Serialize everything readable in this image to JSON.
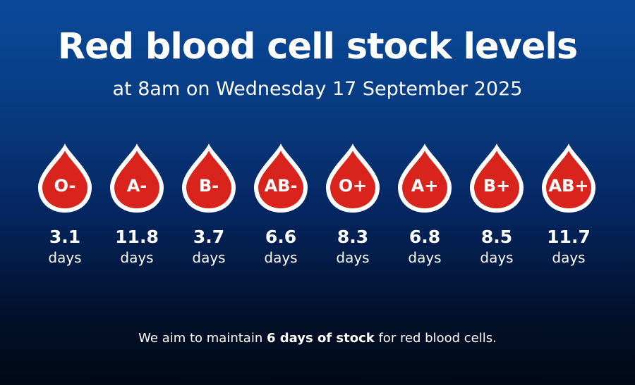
{
  "header": {
    "title": "Red blood cell stock levels",
    "subtitle": "at 8am on Wednesday 17 September 2025"
  },
  "colors": {
    "drop_fill": "#d8241c",
    "drop_outline": "#ffffff",
    "background_top": "#0a4a9a",
    "background_bottom": "#000814"
  },
  "blood_types": [
    {
      "type": "O-",
      "value": "3.1",
      "unit": "days"
    },
    {
      "type": "A-",
      "value": "11.8",
      "unit": "days"
    },
    {
      "type": "B-",
      "value": "3.7",
      "unit": "days"
    },
    {
      "type": "AB-",
      "value": "6.6",
      "unit": "days"
    },
    {
      "type": "O+",
      "value": "8.3",
      "unit": "days"
    },
    {
      "type": "A+",
      "value": "6.8",
      "unit": "days"
    },
    {
      "type": "B+",
      "value": "8.5",
      "unit": "days"
    },
    {
      "type": "AB+",
      "value": "11.7",
      "unit": "days"
    }
  ],
  "footer": {
    "prefix": "We aim to maintain ",
    "highlight": "6 days of stock",
    "suffix": " for red blood cells."
  }
}
